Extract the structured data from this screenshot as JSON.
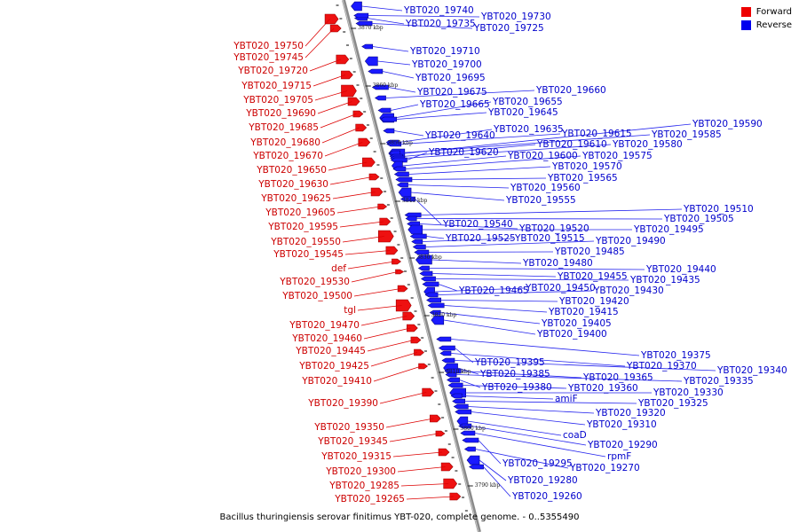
{
  "caption": "Bacillus thuringiensis serovar finitimus YBT-020, complete genome. - 0..5355490",
  "legend": [
    {
      "label": "Forward",
      "color": "#ee0000"
    },
    {
      "label": "Reverse",
      "color": "#0000ee"
    }
  ],
  "axis_ticks": [
    "3870 kbp",
    "3860 kbp",
    "3850 kbp",
    "3840 kbp",
    "3830 kbp",
    "3820 kbp",
    "3810 kbp",
    "3800 kbp",
    "3790 kbp"
  ],
  "forward_genes": [
    "YBT020_19750",
    "YBT020_19745",
    "YBT020_19720",
    "YBT020_19715",
    "YBT020_19705",
    "YBT020_19690",
    "YBT020_19685",
    "YBT020_19680",
    "YBT020_19670",
    "YBT020_19650",
    "YBT020_19630",
    "YBT020_19625",
    "YBT020_19605",
    "YBT020_19595",
    "YBT020_19550",
    "YBT020_19545",
    "def",
    "YBT020_19530",
    "YBT020_19500",
    "tgl",
    "YBT020_19470",
    "YBT020_19460",
    "YBT020_19445",
    "YBT020_19425",
    "YBT020_19410",
    "YBT020_19390",
    "YBT020_19350",
    "YBT020_19345",
    "YBT020_19315",
    "YBT020_19300",
    "YBT020_19285",
    "YBT020_19265"
  ],
  "reverse_genes": [
    "YBT020_19740",
    "YBT020_19735",
    "YBT020_19730",
    "YBT020_19725",
    "YBT020_19710",
    "YBT020_19700",
    "YBT020_19695",
    "YBT020_19675",
    "YBT020_19660",
    "YBT020_19665",
    "YBT020_19655",
    "YBT020_19645",
    "YBT020_19640",
    "YBT020_19635",
    "YBT020_19615",
    "YBT020_19590",
    "YBT020_19585",
    "YBT020_19610",
    "YBT020_19580",
    "YBT020_19620",
    "YBT020_19600",
    "YBT020_19575",
    "YBT020_19570",
    "YBT020_19565",
    "YBT020_19560",
    "YBT020_19555",
    "YBT020_19540",
    "YBT020_19510",
    "YBT020_19505",
    "YBT020_19520",
    "YBT020_19495",
    "YBT020_19525",
    "YBT020_19515",
    "YBT020_19490",
    "YBT020_19485",
    "YBT020_19480",
    "YBT020_19440",
    "YBT020_19455",
    "YBT020_19435",
    "YBT020_19465",
    "YBT020_19450",
    "YBT020_19430",
    "YBT020_19420",
    "YBT020_19415",
    "YBT020_19405",
    "YBT020_19400",
    "YBT020_19375",
    "YBT020_19395",
    "YBT020_19370",
    "YBT020_19340",
    "YBT020_19385",
    "YBT020_19365",
    "YBT020_19335",
    "YBT020_19380",
    "YBT020_19360",
    "YBT020_19330",
    "amiF",
    "YBT020_19325",
    "YBT020_19320",
    "YBT020_19310",
    "coaD",
    "YBT020_19290",
    "rpmF",
    "YBT020_19295",
    "YBT020_19270",
    "YBT020_19280",
    "YBT020_19260"
  ]
}
